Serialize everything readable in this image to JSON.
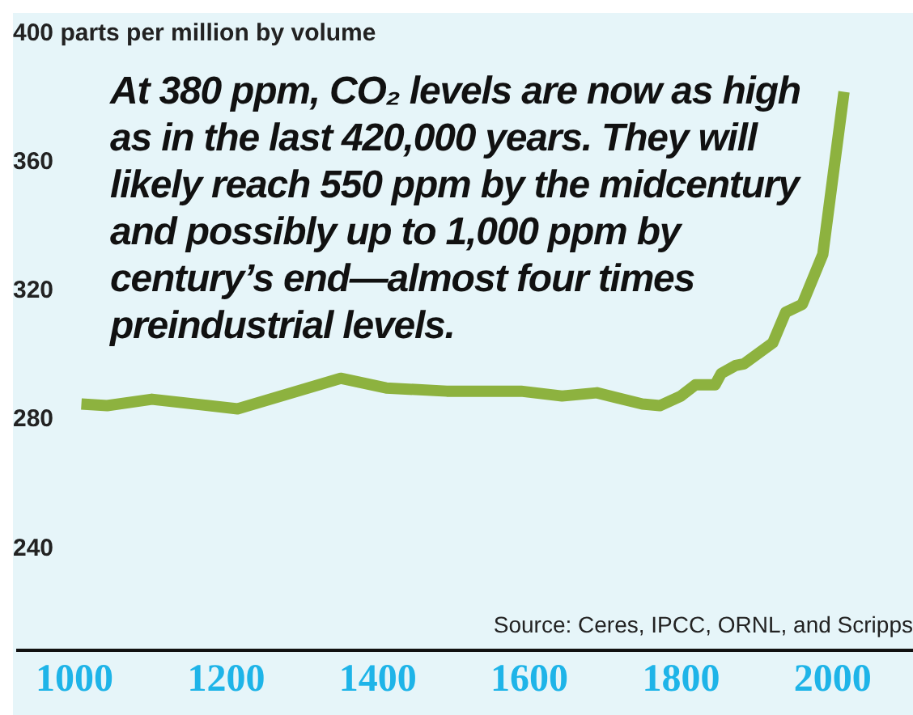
{
  "chart_data": {
    "type": "line",
    "annotations": [
      "At 380 ppm, CO₂ levels are now as high as in the last 420,000 years. They will likely reach 550 ppm by the midcentury and possibly up to 1,000 ppm by century’s end—almost four times preindustrial levels.",
      "Source: Ceres, IPCC, ORNL, and Scripps"
    ],
    "x": [
      1009,
      1043,
      1102,
      1215,
      1351,
      1411,
      1491,
      1589,
      1643,
      1689,
      1749,
      1772,
      1800,
      1819,
      1845,
      1853,
      1872,
      1883,
      1921,
      1938,
      1960,
      1987,
      2015
    ],
    "values": [
      284.5,
      284,
      286,
      283,
      292.5,
      289.5,
      288.5,
      288.5,
      287,
      288,
      284.5,
      284,
      287,
      290.5,
      290.5,
      294,
      296.5,
      297,
      303.5,
      313,
      315.5,
      331,
      381.5
    ],
    "color": "#8db23f",
    "xlim": [
      923,
      2106
    ],
    "xticks": [
      1000,
      1200,
      1400,
      1600,
      1800,
      2000
    ],
    "ylim": [
      208,
      405
    ],
    "yticks": [
      240,
      280,
      320,
      360,
      {
        "value": 400,
        "label": "400 parts per million by volume"
      }
    ],
    "marker": "none",
    "line_style": "solid"
  }
}
